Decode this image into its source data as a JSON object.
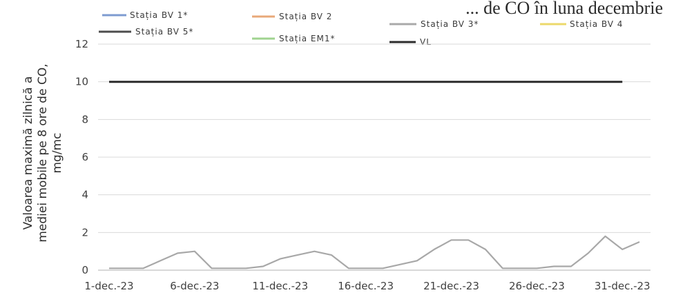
{
  "chart_data": {
    "type": "line",
    "title": "... de CO în luna decembrie",
    "xlabel": "",
    "ylabel_lines": [
      "Valoarea maximă zilnică a",
      "mediei mobile pe 8 ore de CO,",
      "mg/mc"
    ],
    "ylim": [
      0,
      12
    ],
    "yticks": [
      0,
      2,
      4,
      6,
      8,
      10,
      12
    ],
    "xlim": [
      1,
      32
    ],
    "xtick_labels": [
      "1-dec.-23",
      "6-dec.-23",
      "11-dec.-23",
      "16-dec.-23",
      "21-dec.-23",
      "26-dec.-23",
      "31-dec.-23"
    ],
    "xtick_days": [
      1,
      6,
      11,
      16,
      21,
      26,
      31
    ],
    "grid": true,
    "legend_placement": "top",
    "series": [
      {
        "name": "Stația BV 1*",
        "color": "#7d9bd0",
        "values": []
      },
      {
        "name": "Stația BV 2",
        "color": "#e8a878",
        "values": []
      },
      {
        "name": "Stația BV 3*",
        "color": "#a9a9a9",
        "values": []
      },
      {
        "name": "Stația BV 4",
        "color": "#ecd86a",
        "values": []
      },
      {
        "name": "Stația BV 5*",
        "color": "#4d4d4d",
        "values": []
      },
      {
        "name": "Stația EM1*",
        "color": "#9fd38f",
        "values": []
      },
      {
        "name": "VL",
        "color": "#2b2b2b",
        "values": [
          10,
          10,
          10,
          10,
          10,
          10,
          10,
          10,
          10,
          10,
          10,
          10,
          10,
          10,
          10,
          10,
          10,
          10,
          10,
          10,
          10,
          10,
          10,
          10,
          10,
          10,
          10,
          10,
          10,
          10,
          10
        ]
      },
      {
        "name": "",
        "color": "#a8a8a8",
        "values": [
          0.1,
          0.1,
          0.1,
          0.5,
          0.9,
          1.0,
          0.1,
          0.1,
          0.1,
          0.2,
          0.6,
          0.8,
          1.0,
          0.8,
          0.1,
          0.1,
          0.1,
          0.3,
          0.5,
          1.1,
          1.6,
          1.6,
          1.1,
          0.1,
          0.1,
          0.1,
          0.2,
          0.2,
          0.9,
          1.8,
          1.1,
          1.5
        ]
      }
    ]
  }
}
